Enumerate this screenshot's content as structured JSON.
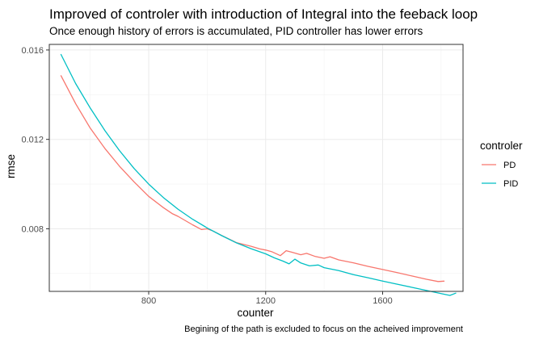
{
  "chart_data": {
    "type": "line",
    "title": "Improved of controler with introduction of Integral into the feeback loop",
    "subtitle": "Once enough history of errors is accumulated, PID controller has lower errors",
    "caption": "Begining of the path is excluded to focus on the acheived improvement",
    "xlabel": "counter",
    "ylabel": "rmse",
    "xlim": [
      460,
      1875
    ],
    "ylim": [
      0.0052,
      0.01625
    ],
    "x_ticks": [
      800,
      1200,
      1600
    ],
    "x_tick_labels": [
      "800",
      "1200",
      "1600"
    ],
    "y_ticks": [
      0.008,
      0.012,
      0.016
    ],
    "y_tick_labels": [
      "0.008",
      "0.012",
      "0.016"
    ],
    "grid": true,
    "legend": {
      "title": "controler",
      "position": "right"
    },
    "series": [
      {
        "name": "PD",
        "color": "#F8766D",
        "x": [
          500,
          550,
          600,
          650,
          700,
          750,
          800,
          850,
          880,
          900,
          950,
          980,
          1000,
          1020,
          1050,
          1100,
          1150,
          1180,
          1200,
          1220,
          1250,
          1270,
          1290,
          1320,
          1340,
          1370,
          1400,
          1420,
          1450,
          1500,
          1550,
          1600,
          1650,
          1700,
          1750,
          1790,
          1810
        ],
        "y": [
          0.01485,
          0.0136,
          0.0125,
          0.0116,
          0.0108,
          0.0101,
          0.00945,
          0.00895,
          0.00868,
          0.00856,
          0.00818,
          0.00797,
          0.008,
          0.0079,
          0.0077,
          0.00738,
          0.00722,
          0.0071,
          0.00705,
          0.00698,
          0.0068,
          0.00702,
          0.00695,
          0.00684,
          0.0069,
          0.00676,
          0.00668,
          0.00675,
          0.00661,
          0.00648,
          0.00632,
          0.00618,
          0.00604,
          0.00589,
          0.00574,
          0.00564,
          0.00566
        ]
      },
      {
        "name": "PID",
        "color": "#00BFC4",
        "x": [
          500,
          550,
          600,
          650,
          700,
          750,
          800,
          850,
          900,
          950,
          1000,
          1050,
          1100,
          1150,
          1200,
          1230,
          1260,
          1280,
          1300,
          1320,
          1350,
          1380,
          1400,
          1450,
          1500,
          1550,
          1600,
          1650,
          1700,
          1750,
          1800,
          1830,
          1850
        ],
        "y": [
          0.0158,
          0.0145,
          0.0134,
          0.0124,
          0.0115,
          0.0107,
          0.01,
          0.0094,
          0.00888,
          0.00843,
          0.00804,
          0.00769,
          0.00737,
          0.00711,
          0.00688,
          0.0067,
          0.00655,
          0.00643,
          0.00664,
          0.00647,
          0.00634,
          0.00638,
          0.00626,
          0.00613,
          0.00595,
          0.00581,
          0.00566,
          0.00552,
          0.00538,
          0.00524,
          0.0051,
          0.00502,
          0.00512
        ]
      }
    ]
  }
}
